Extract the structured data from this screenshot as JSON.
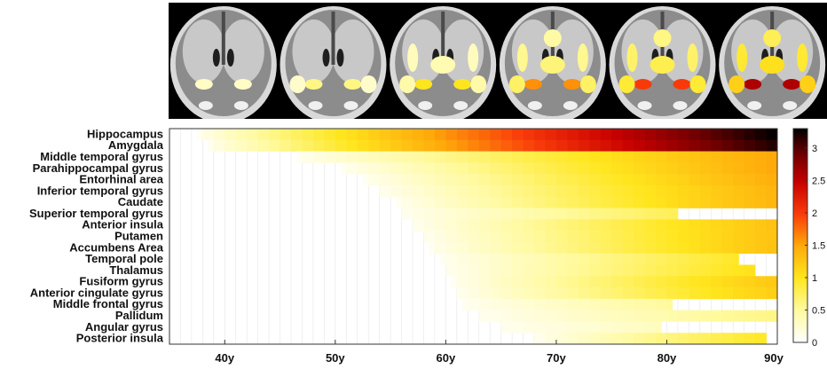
{
  "chart_data": {
    "type": "heatmap",
    "rows": [
      {
        "label": "Hippocampus",
        "onset": 37.5,
        "end": 90,
        "max": 3.3
      },
      {
        "label": "Amygdala",
        "onset": 38.5,
        "end": 90,
        "max": 3.2
      },
      {
        "label": "Middle temporal gyrus",
        "onset": 46.5,
        "end": 90,
        "max": 1.5
      },
      {
        "label": "Parahippocampal gyrus",
        "onset": 50.5,
        "end": 90,
        "max": 1.5
      },
      {
        "label": "Entorhinal area",
        "onset": 52.5,
        "end": 90,
        "max": 1.45
      },
      {
        "label": "Inferior temporal gyrus",
        "onset": 54,
        "end": 90,
        "max": 1.4
      },
      {
        "label": "Caudate",
        "onset": 55.5,
        "end": 90,
        "max": 1.4
      },
      {
        "label": "Superior temporal gyrus",
        "onset": 56,
        "end": 81,
        "max": 1.0
      },
      {
        "label": "Anterior insula",
        "onset": 57,
        "end": 90,
        "max": 1.3
      },
      {
        "label": "Putamen",
        "onset": 58,
        "end": 90,
        "max": 1.3
      },
      {
        "label": "Accumbens Area",
        "onset": 58.5,
        "end": 90,
        "max": 1.3
      },
      {
        "label": "Temporal pole",
        "onset": 59.5,
        "end": 86.5,
        "max": 1.05
      },
      {
        "label": "Thalamus",
        "onset": 60,
        "end": 88,
        "max": 1.1
      },
      {
        "label": "Fusiform gyrus",
        "onset": 60.5,
        "end": 90,
        "max": 1.25
      },
      {
        "label": "Anterior cingulate gyrus",
        "onset": 61,
        "end": 90,
        "max": 1.2
      },
      {
        "label": "Middle frontal gyrus",
        "onset": 61.5,
        "end": 80.5,
        "max": 0.7
      },
      {
        "label": "Pallidum",
        "onset": 63,
        "end": 90,
        "max": 0.6
      },
      {
        "label": "Angular gyrus",
        "onset": 65,
        "end": 79.5,
        "max": 0.5
      },
      {
        "label": "Posterior insula",
        "onset": 68,
        "end": 89,
        "max": 1.0
      }
    ],
    "x_ticks": [
      "40y",
      "50y",
      "60y",
      "70y",
      "80y",
      "90y"
    ],
    "x_tick_values": [
      40,
      50,
      60,
      70,
      80,
      90
    ],
    "xlim": [
      35,
      90
    ],
    "colorbar": {
      "ticks": [
        "0",
        "0.5",
        "1",
        "1.5",
        "2",
        "2.5",
        "3"
      ],
      "tick_values": [
        0,
        0.5,
        1,
        1.5,
        2,
        2.5,
        3
      ],
      "range": [
        0,
        3.3
      ],
      "colormap": "hot-reversed"
    },
    "brain_panels": [
      {
        "level": 0.3
      },
      {
        "level": 0.6
      },
      {
        "level": 1.0
      },
      {
        "level": 1.6
      },
      {
        "level": 2.0
      },
      {
        "level": 2.6
      }
    ]
  }
}
